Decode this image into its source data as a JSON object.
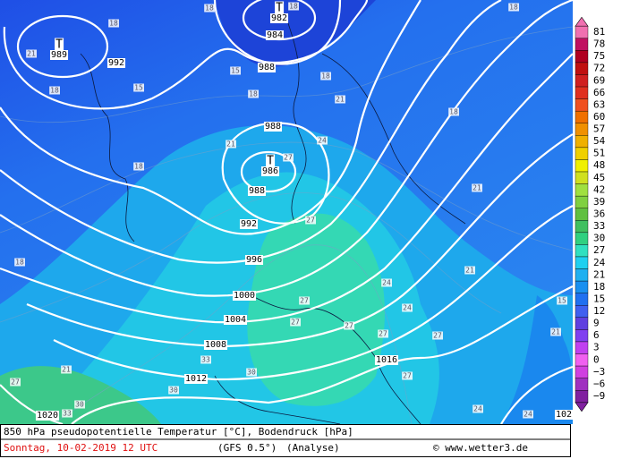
{
  "footer": {
    "title": "850 hPa pseudopotentielle Temperatur [°C], Bodendruck [hPa]",
    "date": "Sonntag, 10-02-2019  12 UTC",
    "model": "(GFS 0.5°)",
    "run": "(Analyse)",
    "source": "© www.wetter3.de"
  },
  "colorbar": {
    "labels": [
      "81",
      "78",
      "75",
      "72",
      "69",
      "66",
      "63",
      "60",
      "57",
      "54",
      "51",
      "48",
      "45",
      "42",
      "39",
      "36",
      "33",
      "30",
      "27",
      "24",
      "21",
      "18",
      "15",
      "12",
      "9",
      "6",
      "3",
      "0",
      "−3",
      "−6",
      "−9"
    ]
  },
  "lows": [
    {
      "symbol": "T",
      "pressure": 989
    },
    {
      "symbol": "T",
      "pressure": 982
    },
    {
      "symbol": "T",
      "pressure": 986
    }
  ],
  "isobar_labels": [
    "992",
    "988",
    "984",
    "988",
    "988",
    "992",
    "996",
    "1000",
    "1004",
    "1008",
    "1012",
    "1016",
    "1020",
    "102"
  ],
  "temperature_labels": [
    "18",
    "18",
    "18",
    "18",
    "21",
    "18",
    "15",
    "15",
    "18",
    "18",
    "21",
    "18",
    "18",
    "21",
    "24",
    "27",
    "21",
    "27",
    "18",
    "21",
    "24",
    "15",
    "24",
    "27",
    "27",
    "27",
    "27",
    "27",
    "21",
    "33",
    "30",
    "21",
    "27",
    "27",
    "30",
    "30",
    "33",
    "24",
    "24"
  ]
}
